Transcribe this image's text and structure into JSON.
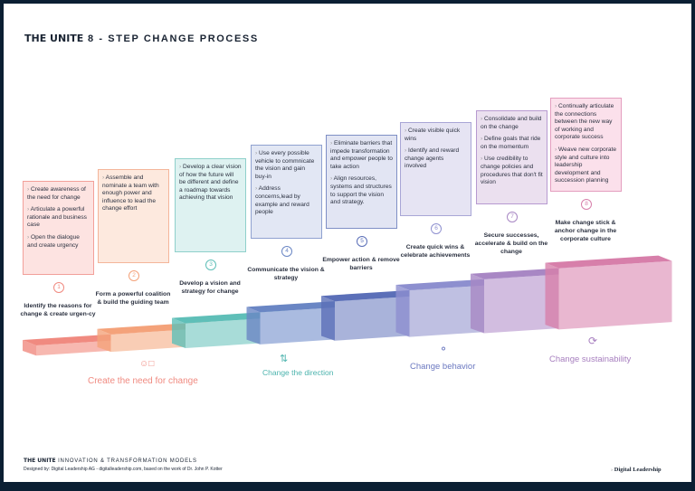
{
  "title": {
    "brand": "THE UNITE",
    "text": "8 - STEP CHANGE PROCESS"
  },
  "steps": [
    {
      "number": "1",
      "label": "Identify the reasons for change & create urgen-cy",
      "bullets": [
        "Create awareness of the need for change",
        "Articulate a powerful rationale and business case",
        "Open the dialogue and create urgency"
      ],
      "top": "#f08a80",
      "front": "#f7b8b0",
      "card_bg": "#fde3e1",
      "card_border": "#f2a09a"
    },
    {
      "number": "2",
      "label": "Form a powerful coalition & build the guiding team",
      "bullets": [
        "Assemble and nominate a team with enough power and influence to lead the change effort"
      ],
      "top": "#f4a27a",
      "front": "#f9cdb5",
      "card_bg": "#fde9de",
      "card_border": "#f4b59a"
    },
    {
      "number": "3",
      "label": "Develop a vision and strategy for change",
      "bullets": [
        "Develop a clear vision of how the future will be different and define a roadmap towards achieving that vision"
      ],
      "top": "#5fbfb8",
      "front": "#a8dcd8",
      "card_bg": "#def2f1",
      "card_border": "#8fd0cb"
    },
    {
      "number": "4",
      "label": "Communicate the vision & strategy",
      "bullets": [
        "Use every possible vehicle to commnicate the vision and gain buy-in",
        "Address concerns,lead by example and reward people"
      ],
      "top": "#6a86c4",
      "front": "#aabbe0",
      "card_bg": "#e2e7f4",
      "card_border": "#8fa1d0"
    },
    {
      "number": "5",
      "label": "Empower action & remove barriers",
      "bullets": [
        "Eliminate barriers that impede transformation and empower people to take action",
        "Align resources, systems and structures to support the vision and strategy."
      ],
      "top": "#5b6fb8",
      "front": "#a9b3da",
      "card_bg": "#e2e5f3",
      "card_border": "#7f8fc5"
    },
    {
      "number": "6",
      "label": "Create quick wins & celebrate achievements",
      "bullets": [
        "Create visible quick wins",
        "Identify and reward change agents involved"
      ],
      "top": "#8d8fcf",
      "front": "#bfc0e2",
      "card_bg": "#e6e4f3",
      "card_border": "#a9a6d6"
    },
    {
      "number": "7",
      "label": "Secure successes, accelerate & build on the change",
      "bullets": [
        "Consolidate and build on the change",
        "Define goals that ride on the momentum",
        "Use credibility to change policies and procedures that don't fit vision"
      ],
      "top": "#a887c4",
      "front": "#d2bde0",
      "card_bg": "#ebe0ef",
      "card_border": "#b79ad0"
    },
    {
      "number": "8",
      "label": "Make change stick & anchor change in the corporate culture",
      "bullets": [
        "Continually articulate the connections between the new way of working and corporate success",
        "Weave new corporate style and culture into leadership development and succession planning"
      ],
      "top": "#d77faa",
      "front": "#e9b7d0",
      "card_bg": "#fbe0eb",
      "card_border": "#e49ebf"
    }
  ],
  "phases": [
    {
      "label": "Create the need for change",
      "icon": "people-icon",
      "color": "#f08a80"
    },
    {
      "label": "Change the direction",
      "icon": "direction-arrows-icon",
      "color": "#4bb3ad"
    },
    {
      "label": "Change behavior",
      "icon": "head-icon",
      "color": "#6b78c0"
    },
    {
      "label": "Change sustainability",
      "icon": "cycle-icon",
      "color": "#a77fbf"
    }
  ],
  "footer": {
    "brand": "THE UNITE",
    "models": "INNOVATION & TRANSFORMATION MODELS",
    "credit": "Designed by: Digital Leadership AG - digitalleadership.com, based on the work of Dr. John P. Kotter",
    "company": "Digital Leadership"
  }
}
